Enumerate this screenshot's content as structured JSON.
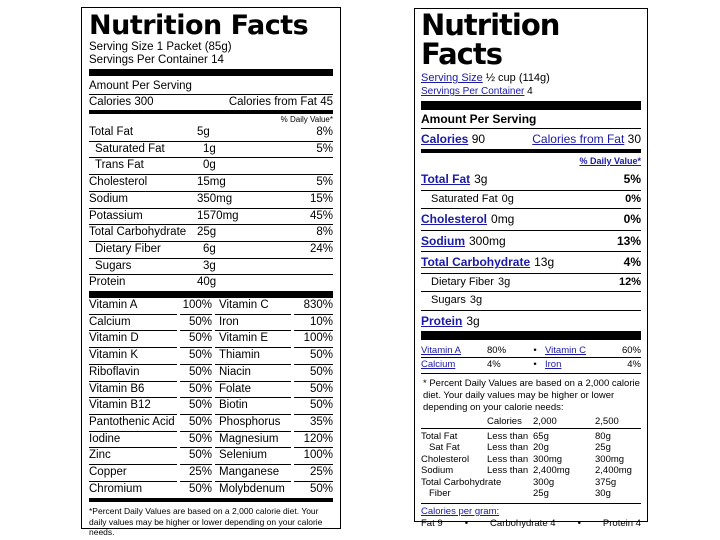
{
  "left": {
    "title": "Nutrition Facts",
    "serving_size": "Serving Size 1 Packet (85g)",
    "servings_per_container": "Servings Per Container 14",
    "amount_per_serving": "Amount Per Serving",
    "calories": "Calories 300",
    "calories_from_fat": "Calories from Fat 45",
    "daily_value_header": "% Daily Value*",
    "nutrients": [
      {
        "name": "Total Fat",
        "qty": "5g",
        "pct": "8%",
        "indent": false
      },
      {
        "name": "Saturated Fat",
        "qty": "1g",
        "pct": "5%",
        "indent": true
      },
      {
        "name": "Trans Fat",
        "qty": "0g",
        "pct": "",
        "indent": true
      },
      {
        "name": "Cholesterol",
        "qty": "15mg",
        "pct": "5%",
        "indent": false
      },
      {
        "name": "Sodium",
        "qty": "350mg",
        "pct": "15%",
        "indent": false
      },
      {
        "name": "Potassium",
        "qty": "1570mg",
        "pct": "45%",
        "indent": false
      },
      {
        "name": "Total Carbohydrate",
        "qty": "25g",
        "pct": "8%",
        "indent": false
      },
      {
        "name": "Dietary Fiber",
        "qty": "6g",
        "pct": "24%",
        "indent": true
      },
      {
        "name": "Sugars",
        "qty": "3g",
        "pct": "",
        "indent": true
      },
      {
        "name": "Protein",
        "qty": "40g",
        "pct": "",
        "indent": false
      }
    ],
    "vitamins": [
      [
        "Vitamin A",
        "100%",
        "Vitamin C",
        "830%"
      ],
      [
        "Calcium",
        "50%",
        "Iron",
        "10%"
      ],
      [
        "Vitamin D",
        "50%",
        "Vitamin E",
        "100%"
      ],
      [
        "Vitamin K",
        "50%",
        "Thiamin",
        "50%"
      ],
      [
        "Riboflavin",
        "50%",
        "Niacin",
        "50%"
      ],
      [
        "Vitamin B6",
        "50%",
        "Folate",
        "50%"
      ],
      [
        "Vitamin B12",
        "50%",
        "Biotin",
        "50%"
      ],
      [
        "Pantothenic Acid",
        "50%",
        "Phosphorus",
        "35%"
      ],
      [
        "Iodine",
        "50%",
        "Magnesium",
        "120%"
      ],
      [
        "Zinc",
        "50%",
        "Selenium",
        "100%"
      ],
      [
        "Copper",
        "25%",
        "Manganese",
        "25%"
      ],
      [
        "Chromium",
        "50%",
        "Molybdenum",
        "50%"
      ]
    ],
    "footnote": "*Percent Daily Values are based on a 2,000 calorie diet. Your daily values may be higher or lower depending on your calorie needs."
  },
  "right": {
    "title": "Nutrition Facts",
    "serving_size_label": "Serving Size",
    "serving_size_value": "½ cup (114g)",
    "servings_label": "Servings Per Container",
    "servings_value": "4",
    "amount_per_serving": "Amount Per Serving",
    "calories_label": "Calories",
    "calories_value": "90",
    "calories_fat_label": "Calories from Fat",
    "calories_fat_value": "30",
    "daily_value_header": "% Daily Value*",
    "nutrients": [
      {
        "name": "Total Fat",
        "qty": "3g",
        "pct": "5%",
        "sub": false
      },
      {
        "name": "Saturated Fat",
        "qty": "0g",
        "pct": "0%",
        "sub": true
      },
      {
        "name": "Cholesterol",
        "qty": "0mg",
        "pct": "0%",
        "sub": false
      },
      {
        "name": "Sodium",
        "qty": "300mg",
        "pct": "13%",
        "sub": false
      },
      {
        "name": "Total Carbohydrate",
        "qty": "13g",
        "pct": "4%",
        "sub": false
      },
      {
        "name": "Dietary Fiber",
        "qty": "3g",
        "pct": "12%",
        "sub": true
      },
      {
        "name": "Sugars",
        "qty": "3g",
        "pct": "",
        "sub": true
      },
      {
        "name": "Protein",
        "qty": "3g",
        "pct": "",
        "sub": false
      }
    ],
    "vitamins": [
      [
        "Vitamin A",
        "80%",
        "•",
        "Vitamin C",
        "60%"
      ],
      [
        "Calcium",
        "4%",
        "•",
        "Iron",
        "4%"
      ]
    ],
    "footnote": "* Percent Daily Values are based on a 2,000 calorie diet. Your daily values may be higher or lower depending on your calorie needs:",
    "dv_table": {
      "header": [
        "",
        "Calories",
        "2,000",
        "2,500"
      ],
      "rows": [
        [
          "Total Fat",
          "Less than",
          "65g",
          "80g"
        ],
        [
          "Sat Fat",
          "Less than",
          "20g",
          "25g"
        ],
        [
          "Cholesterol",
          "Less than",
          "300mg",
          "300mg"
        ],
        [
          "Sodium",
          "Less than",
          "2,400mg",
          "2,400mg"
        ],
        [
          "Total Carbohydrate",
          "",
          "300g",
          "375g"
        ],
        [
          "Fiber",
          "",
          "25g",
          "30g"
        ]
      ]
    },
    "calories_per_gram_label": "Calories per gram:",
    "calories_per_gram": [
      "Fat 9",
      "•",
      "Carbohydrate 4",
      "•",
      "Protein 4"
    ]
  }
}
